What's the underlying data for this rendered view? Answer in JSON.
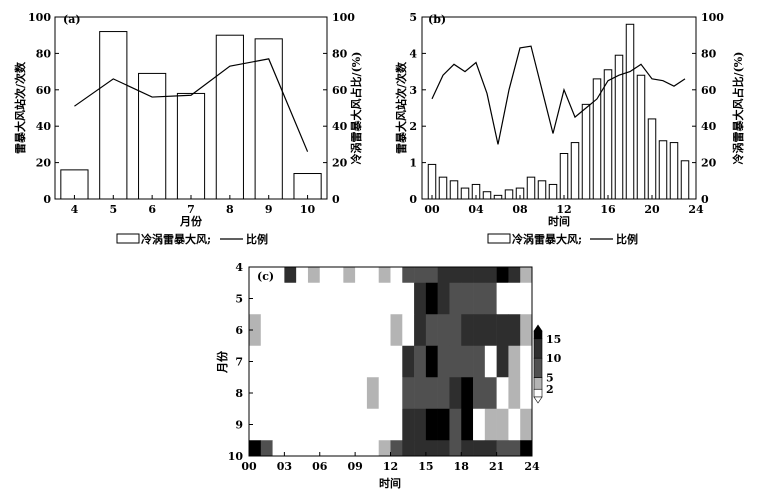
{
  "chart_data": [
    {
      "id": "a",
      "type": "bar+line",
      "panel_label": "(a)",
      "categories": [
        "4",
        "5",
        "6",
        "7",
        "8",
        "9",
        "10"
      ],
      "xlabel": "月份",
      "ylabel_left": "雷暴大风站次/次数",
      "ylabel_right": "冷涡雷暴大风占比/(%)",
      "ylim": [
        0,
        100
      ],
      "yticks": [
        "0",
        "20",
        "40",
        "60",
        "80",
        "100"
      ],
      "series": [
        {
          "name": "冷涡雷暴大风",
          "kind": "bar",
          "values": [
            16,
            92,
            69,
            58,
            90,
            88,
            14
          ]
        },
        {
          "name": "比例",
          "kind": "line",
          "values": [
            51,
            66,
            56,
            57,
            73,
            77,
            26
          ]
        }
      ],
      "legend": {
        "bar_label": "冷涡雷暴大风;",
        "line_label": "比例"
      }
    },
    {
      "id": "b",
      "type": "bar+line",
      "panel_label": "(b)",
      "x": [
        0,
        1,
        2,
        3,
        4,
        5,
        6,
        7,
        8,
        9,
        10,
        11,
        12,
        13,
        14,
        15,
        16,
        17,
        18,
        19,
        20,
        21,
        22,
        23
      ],
      "xticks": [
        "00",
        "04",
        "08",
        "12",
        "16",
        "20",
        "24"
      ],
      "xlabel": "时间",
      "ylabel_left": "雷暴大风站次/次数",
      "ylabel_right": "冷涡雷暴大风占比/(%)",
      "ylim_left": [
        0,
        5
      ],
      "yticks_left": [
        "0",
        "1",
        "2",
        "3",
        "4",
        "5"
      ],
      "ylim_right": [
        0,
        100
      ],
      "yticks_right": [
        "0",
        "20",
        "40",
        "60",
        "80",
        "100"
      ],
      "series": [
        {
          "name": "冷涡雷暴大风",
          "kind": "bar",
          "values": [
            0.95,
            0.6,
            0.5,
            0.3,
            0.4,
            0.2,
            0.1,
            0.25,
            0.3,
            0.6,
            0.5,
            0.4,
            1.25,
            1.55,
            2.6,
            3.3,
            3.55,
            3.95,
            4.8,
            3.4,
            2.2,
            1.6,
            1.55,
            1.05
          ]
        },
        {
          "name": "比例",
          "kind": "line",
          "values": [
            55,
            68,
            74,
            70,
            75,
            58,
            30,
            60,
            83,
            84,
            60,
            36,
            60,
            45,
            50,
            55,
            65,
            68,
            70,
            74,
            66,
            65,
            62,
            66
          ]
        }
      ],
      "legend": {
        "bar_label": "冷涡雷暴大风;",
        "line_label": "比例"
      }
    },
    {
      "id": "c",
      "type": "heatmap",
      "panel_label": "(c)",
      "xticks": [
        "00",
        "03",
        "06",
        "09",
        "12",
        "15",
        "18",
        "21",
        "24"
      ],
      "yticks": [
        "4",
        "5",
        "6",
        "7",
        "8",
        "9",
        "10"
      ],
      "xlabel": "时间",
      "ylabel": "月份",
      "colorbar_ticks": [
        "2",
        "5",
        "10",
        "15"
      ],
      "x_hours": [
        0,
        1,
        2,
        3,
        4,
        5,
        6,
        7,
        8,
        9,
        10,
        11,
        12,
        13,
        14,
        15,
        16,
        17,
        18,
        19,
        20,
        21,
        22,
        23
      ],
      "months": [
        4,
        5,
        6,
        7,
        8,
        9,
        10
      ],
      "values": [
        [
          0,
          0,
          0,
          13,
          0,
          3,
          0,
          0,
          3,
          0,
          0,
          3,
          0,
          6,
          6,
          9,
          11,
          11,
          11,
          11,
          11,
          14,
          11,
          3
        ],
        [
          0,
          0,
          0,
          0,
          0,
          0,
          0,
          0,
          0,
          0,
          0,
          0,
          0,
          0,
          13,
          15,
          12,
          10,
          10,
          10,
          10,
          0,
          0,
          0
        ],
        [
          2,
          0,
          0,
          0,
          0,
          0,
          0,
          0,
          0,
          0,
          0,
          0,
          3,
          0,
          12,
          10,
          10,
          10,
          13,
          13,
          11,
          11,
          11,
          4
        ],
        [
          0,
          0,
          0,
          0,
          0,
          0,
          0,
          0,
          0,
          0,
          0,
          0,
          0,
          13,
          10,
          14,
          10,
          10,
          10,
          10,
          0,
          13,
          5,
          0
        ],
        [
          0,
          0,
          0,
          0,
          0,
          0,
          0,
          0,
          0,
          0,
          3,
          0,
          0,
          10,
          10,
          6,
          10,
          12,
          15,
          10,
          10,
          0,
          4,
          0
        ],
        [
          0,
          0,
          0,
          0,
          0,
          0,
          0,
          0,
          0,
          0,
          0,
          0,
          0,
          12,
          13,
          15,
          15,
          10,
          14,
          0,
          4,
          4,
          0,
          4
        ],
        [
          14,
          8,
          0,
          0,
          0,
          0,
          0,
          0,
          0,
          0,
          0,
          3,
          9,
          12,
          12,
          12,
          11,
          10,
          11,
          12,
          11,
          10,
          6,
          14
        ]
      ]
    }
  ]
}
